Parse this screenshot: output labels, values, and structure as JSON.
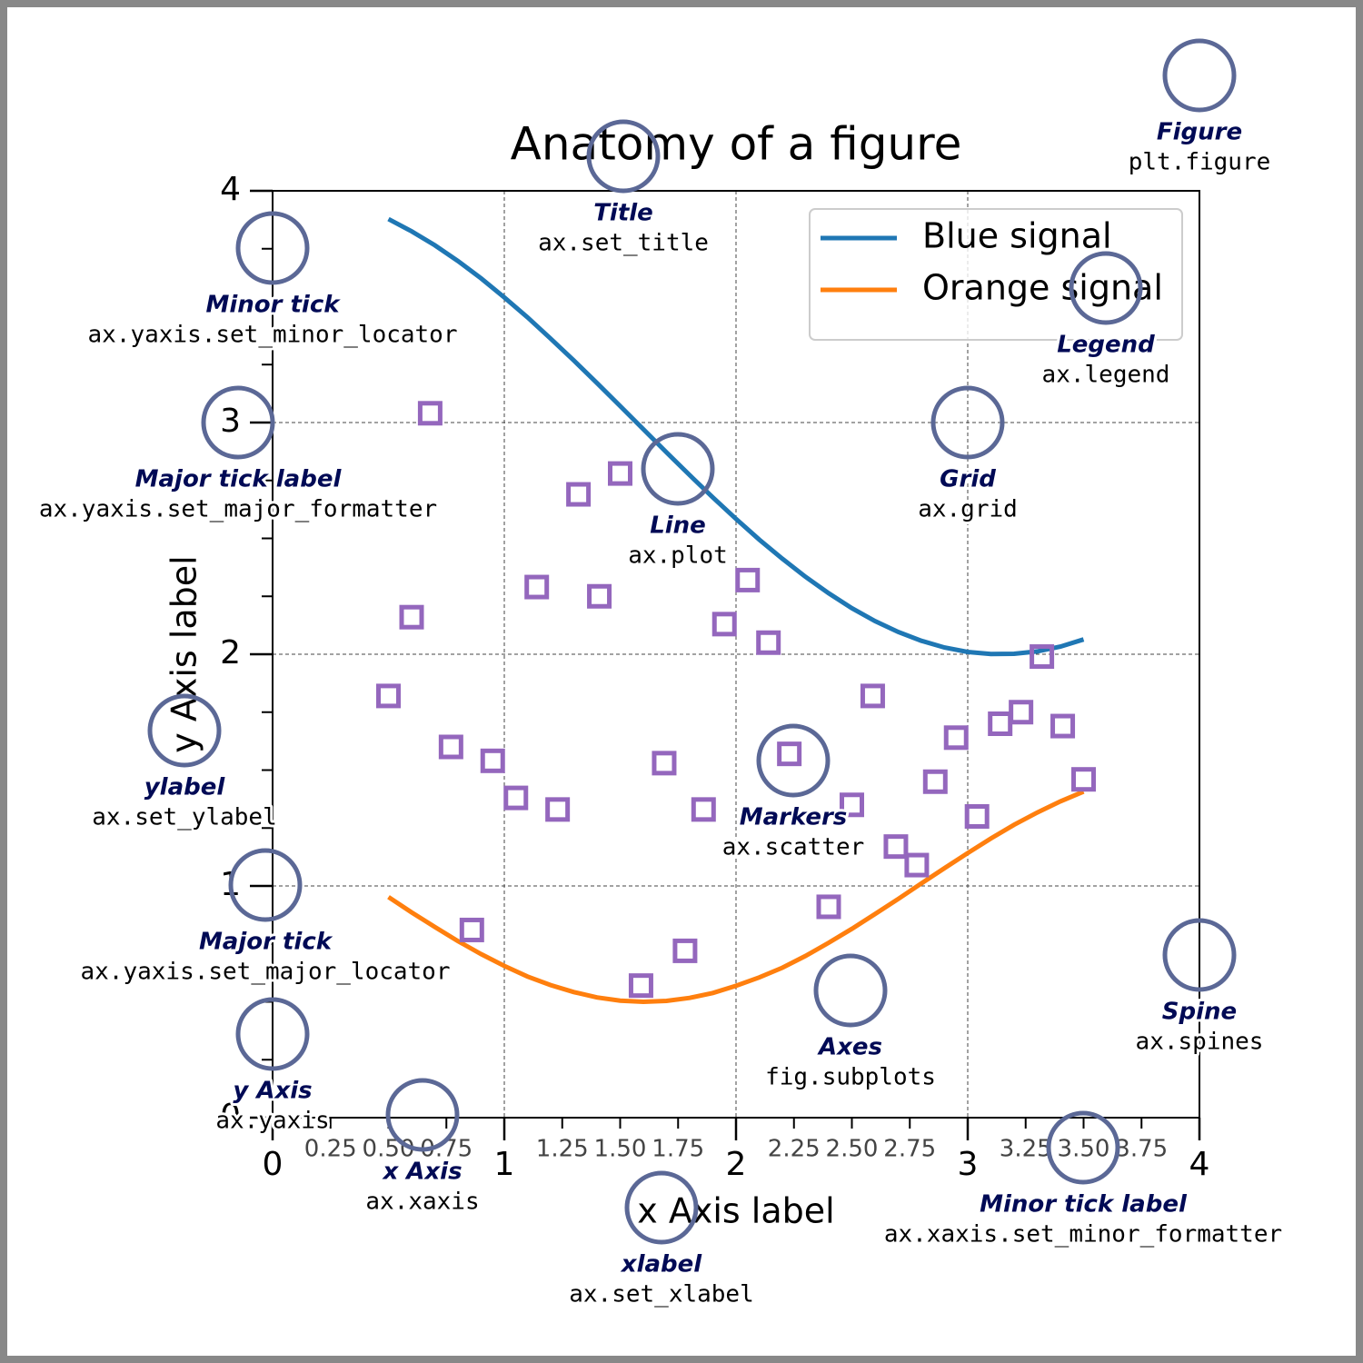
{
  "chart_data": {
    "type": "line",
    "title": "Anatomy of a figure",
    "xlabel": "x Axis label",
    "ylabel": "y Axis label",
    "x": [
      0.5,
      0.6,
      0.7,
      0.8,
      0.9,
      1.0,
      1.1,
      1.2,
      1.3,
      1.4,
      1.5,
      1.6,
      1.7,
      1.8,
      1.9,
      2.0,
      2.1,
      2.2,
      2.3,
      2.4,
      2.5,
      2.6,
      2.7,
      2.8,
      2.9,
      3.0,
      3.1,
      3.2,
      3.3,
      3.4,
      3.5
    ],
    "series": [
      {
        "name": "Blue signal",
        "color": "#1f77b4",
        "values": [
          3.878,
          3.825,
          3.765,
          3.697,
          3.622,
          3.54,
          3.454,
          3.362,
          3.268,
          3.17,
          3.071,
          2.971,
          2.871,
          2.773,
          2.677,
          2.584,
          2.495,
          2.412,
          2.334,
          2.263,
          2.199,
          2.143,
          2.096,
          2.058,
          2.029,
          2.01,
          2.001,
          2.002,
          2.012,
          2.033,
          2.064
        ]
      },
      {
        "name": "Orange signal",
        "color": "#ff7f0e",
        "values": [
          0.952,
          0.886,
          0.823,
          0.762,
          0.706,
          0.655,
          0.609,
          0.572,
          0.542,
          0.519,
          0.505,
          0.5,
          0.504,
          0.517,
          0.538,
          0.569,
          0.605,
          0.647,
          0.698,
          0.755,
          0.815,
          0.879,
          0.944,
          1.011,
          1.077,
          1.142,
          1.205,
          1.264,
          1.317,
          1.365,
          1.407
        ]
      }
    ],
    "scatter": {
      "color": "#9467bd",
      "marker": "square",
      "x": [
        0.68,
        0.6,
        0.5,
        0.77,
        0.95,
        1.05,
        1.23,
        1.14,
        1.32,
        1.5,
        1.41,
        0.86,
        1.59,
        1.78,
        1.69,
        1.86,
        1.95,
        2.05,
        2.14,
        2.23,
        2.5,
        2.4,
        2.59,
        2.69,
        2.78,
        2.86,
        2.95,
        3.04,
        3.14,
        3.23,
        3.32,
        3.41,
        3.5
      ],
      "values": [
        3.04,
        2.16,
        1.82,
        1.6,
        1.54,
        1.38,
        1.33,
        2.29,
        2.69,
        2.78,
        2.25,
        0.81,
        0.57,
        0.72,
        1.53,
        1.33,
        2.13,
        2.32,
        2.05,
        1.57,
        1.35,
        0.91,
        1.82,
        1.17,
        1.09,
        1.45,
        1.64,
        1.3,
        1.7,
        1.75,
        1.99,
        1.69,
        1.46
      ]
    },
    "xlim": [
      0,
      4
    ],
    "ylim": [
      0,
      4
    ],
    "xticks": [
      0,
      1,
      2,
      3,
      4
    ],
    "yticks": [
      0,
      1,
      2,
      3,
      4
    ],
    "xminorticks": [
      0.25,
      {
        "value": 0.5,
        "label": "0.50"
      },
      0.75,
      1.25,
      {
        "value": 1.5,
        "label": "1.50"
      },
      1.75,
      2.25,
      {
        "value": 2.5,
        "label": "2.50"
      },
      2.75,
      3.25,
      {
        "value": 3.5,
        "label": "3.50"
      },
      3.75
    ],
    "yminorticks": [
      0.25,
      0.5,
      0.75,
      1.25,
      1.5,
      1.75,
      2.25,
      2.5,
      2.75,
      3.25,
      3.5,
      3.75
    ],
    "grid": true,
    "legend": "upper right",
    "annotations": [
      {
        "title": "Figure",
        "code": "plt.figure"
      },
      {
        "title": "Title",
        "code": "ax.set_title"
      },
      {
        "title": "Minor tick",
        "code": "ax.yaxis.set_minor_locator"
      },
      {
        "title": "Major tick label",
        "code": "ax.yaxis.set_major_formatter"
      },
      {
        "title": "Legend",
        "code": "ax.legend"
      },
      {
        "title": "Grid",
        "code": "ax.grid"
      },
      {
        "title": "Line",
        "code": "ax.plot"
      },
      {
        "title": "ylabel",
        "code": "ax.set_ylabel"
      },
      {
        "title": "Markers",
        "code": "ax.scatter"
      },
      {
        "title": "Major tick",
        "code": "ax.yaxis.set_major_locator"
      },
      {
        "title": "Axes",
        "code": "fig.subplots"
      },
      {
        "title": "Spine",
        "code": "ax.spines"
      },
      {
        "title": "y Axis",
        "code": "ax.yaxis"
      },
      {
        "title": "x Axis",
        "code": "ax.xaxis"
      },
      {
        "title": "xlabel",
        "code": "ax.set_xlabel"
      },
      {
        "title": "Minor tick label",
        "code": "ax.xaxis.set_minor_formatter"
      }
    ]
  }
}
